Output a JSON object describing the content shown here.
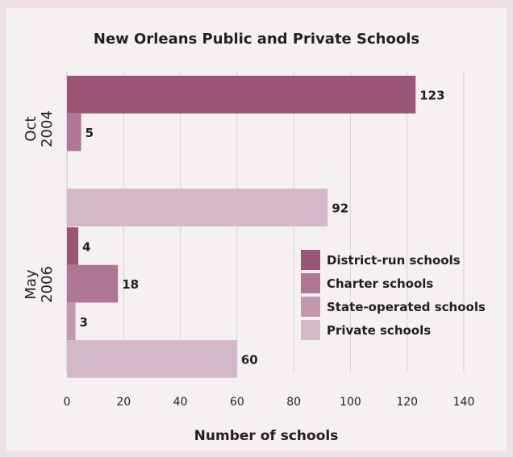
{
  "chart_data": {
    "type": "bar",
    "orientation": "horizontal",
    "title": "New Orleans Public and Private Schools",
    "xlabel": "Number of schools",
    "ylabel": "",
    "xlim": [
      0,
      140
    ],
    "xticks": [
      0,
      20,
      40,
      60,
      80,
      100,
      120,
      140
    ],
    "grid": true,
    "legend_position": "right",
    "categories": [
      "Oct\n2004",
      "May\n2006"
    ],
    "series": [
      {
        "name": "District-run schools",
        "values": [
          123,
          4
        ],
        "color": "#9b5677"
      },
      {
        "name": "Charter schools",
        "values": [
          5,
          18
        ],
        "color": "#b07794"
      },
      {
        "name": "State-operated schools",
        "values": [
          0,
          3
        ],
        "color": "#c498af"
      },
      {
        "name": "Private schools",
        "values": [
          92,
          60
        ],
        "color": "#d5b8c7"
      }
    ]
  }
}
